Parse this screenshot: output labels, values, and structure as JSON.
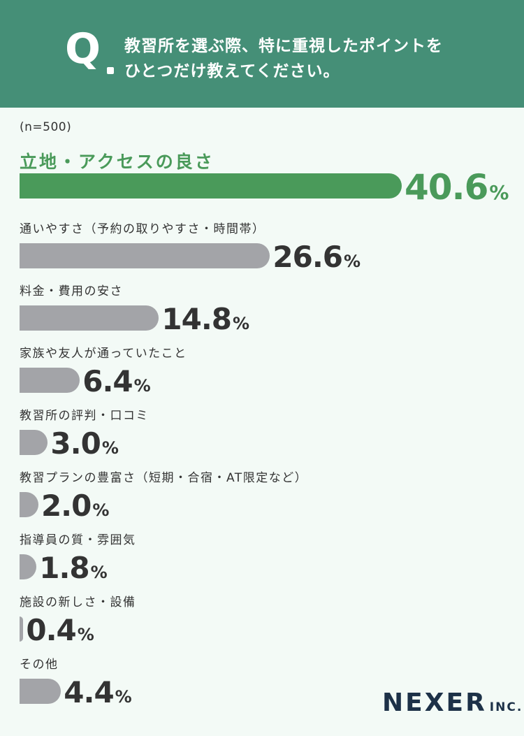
{
  "question": {
    "mark": "Q",
    "line1": "教習所を選ぶ際、特に重視したポイントを",
    "line2": "ひとつだけ教えてください。"
  },
  "sample": "(n=500)",
  "logo": {
    "main": "NEXER",
    "sub": "INC."
  },
  "colors": {
    "header": "#458f77",
    "highlight": "#4a9a5a",
    "bar": "#a3a4a8",
    "background": "#f3faf6",
    "logo": "#1d3148"
  },
  "chart_data": {
    "type": "bar",
    "orientation": "horizontal",
    "unit": "%",
    "categories": [
      "立地・アクセスの良さ",
      "通いやすさ（予約の取りやすさ・時間帯）",
      "料金・費用の安さ",
      "家族や友人が通っていたこと",
      "教習所の評判・口コミ",
      "教習プランの豊富さ（短期・合宿・AT限定など）",
      "指導員の質・雰囲気",
      "施設の新しさ・設備",
      "その他"
    ],
    "values": [
      40.6,
      26.6,
      14.8,
      6.4,
      3.0,
      2.0,
      1.8,
      0.4,
      4.4
    ],
    "value_labels": [
      "40.6",
      "26.6",
      "14.8",
      "6.4",
      "3.0",
      "2.0",
      "1.8",
      "0.4",
      "4.4"
    ],
    "highlight_index": 0
  }
}
